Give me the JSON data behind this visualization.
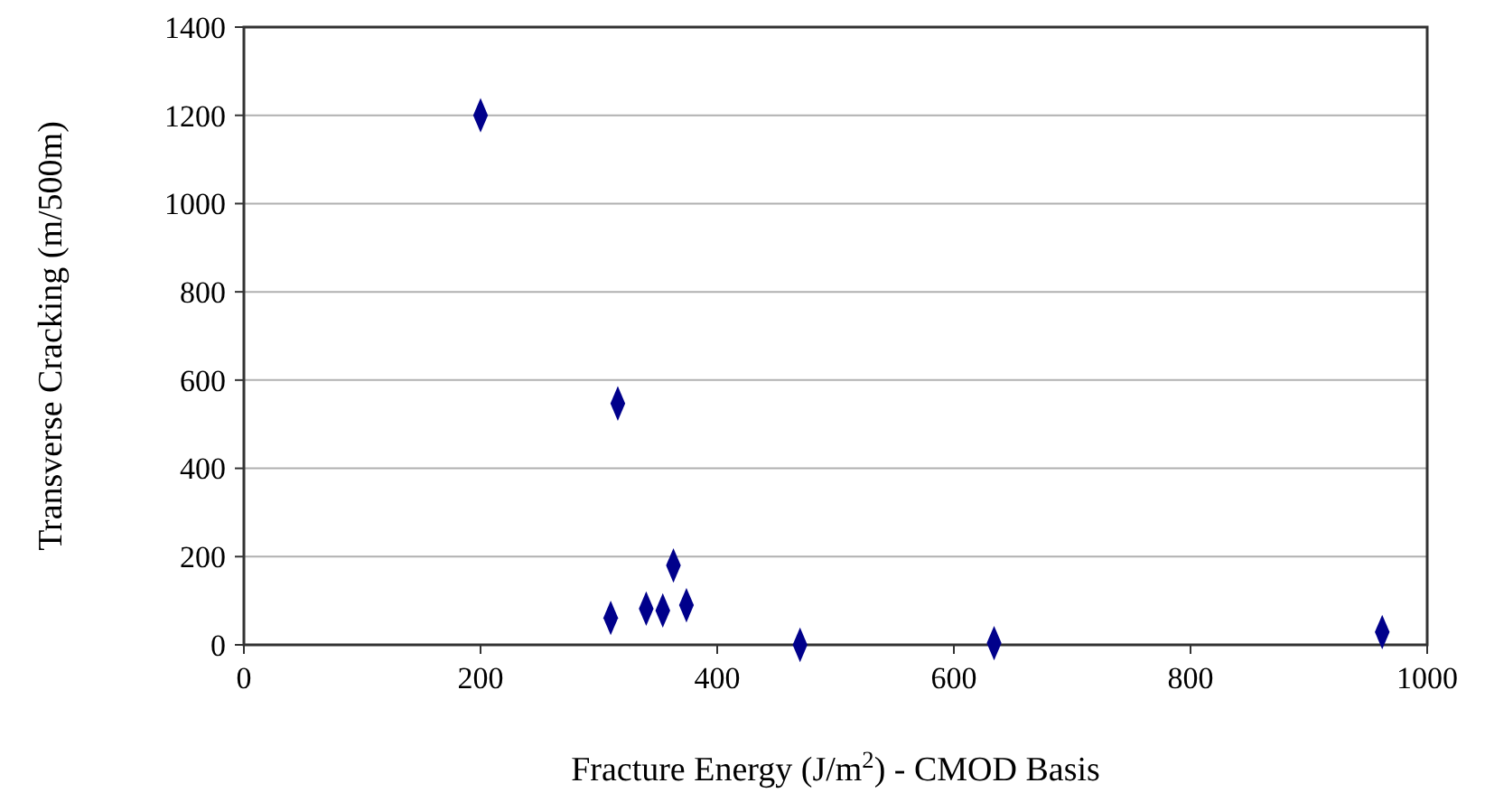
{
  "chart_data": {
    "type": "scatter",
    "xlabel": "Fracture Energy (J/m$^{2}$) - CMOD Basis",
    "ylabel": "Transverse Cracking (m/500m)",
    "x": [
      200,
      316,
      310,
      340,
      354,
      363,
      374,
      470,
      634,
      962
    ],
    "values": [
      1200,
      547,
      61,
      82,
      78,
      180,
      90,
      0,
      4,
      29
    ],
    "color": "#00008b",
    "marker": "diamond",
    "xlim": [
      0,
      1000
    ],
    "xticks": [
      0,
      200,
      400,
      600,
      800,
      1000
    ],
    "ylim": [
      0,
      1400
    ],
    "yticks": [
      0,
      200,
      400,
      600,
      800,
      1000,
      1200,
      1400
    ],
    "grid": "y"
  }
}
